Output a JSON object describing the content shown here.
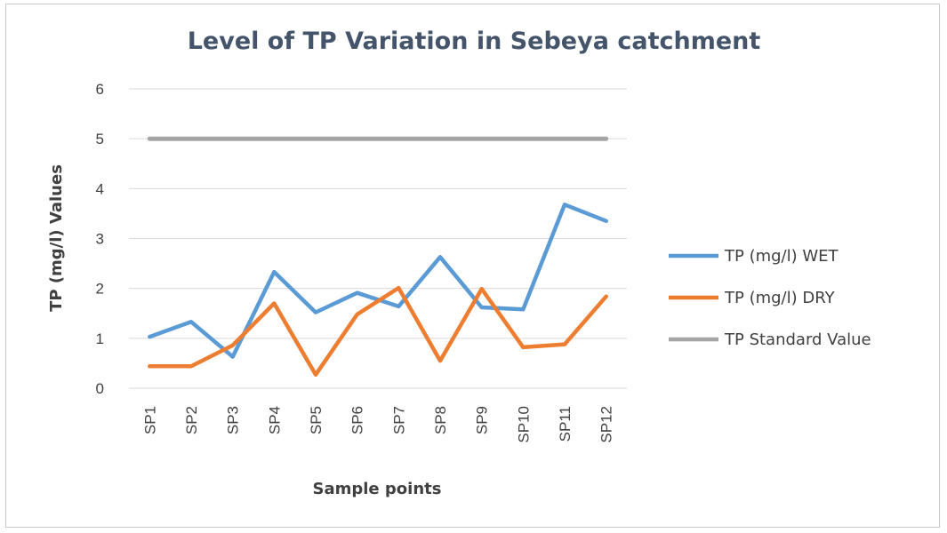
{
  "chart_data": {
    "type": "line",
    "title": "Level of TP Variation in Sebeya catchment",
    "xlabel": "Sample points",
    "ylabel": "TP (mg/l) Values",
    "categories": [
      "SP1",
      "SP2",
      "SP3",
      "SP4",
      "SP5",
      "SP6",
      "SP7",
      "SP8",
      "SP9",
      "SP10",
      "SP11",
      "SP12"
    ],
    "ylim": [
      0,
      6
    ],
    "yticks": [
      "0",
      "1",
      "2",
      "3",
      "4",
      "5",
      "6"
    ],
    "grid": true,
    "legend_position": "right",
    "series": [
      {
        "name": "TP (mg/l) WET",
        "color": "#5b9bd5",
        "values": [
          1.03,
          1.33,
          0.63,
          2.33,
          1.52,
          1.91,
          1.64,
          2.63,
          1.62,
          1.58,
          3.68,
          3.35
        ]
      },
      {
        "name": "TP (mg/l) DRY",
        "color": "#ed7d31",
        "values": [
          0.44,
          0.44,
          0.86,
          1.7,
          0.27,
          1.48,
          2.01,
          0.55,
          1.99,
          0.82,
          0.88,
          1.84
        ]
      },
      {
        "name": "TP Standard Value",
        "color": "#a5a5a5",
        "values": [
          5,
          5,
          5,
          5,
          5,
          5,
          5,
          5,
          5,
          5,
          5,
          5
        ]
      }
    ]
  }
}
